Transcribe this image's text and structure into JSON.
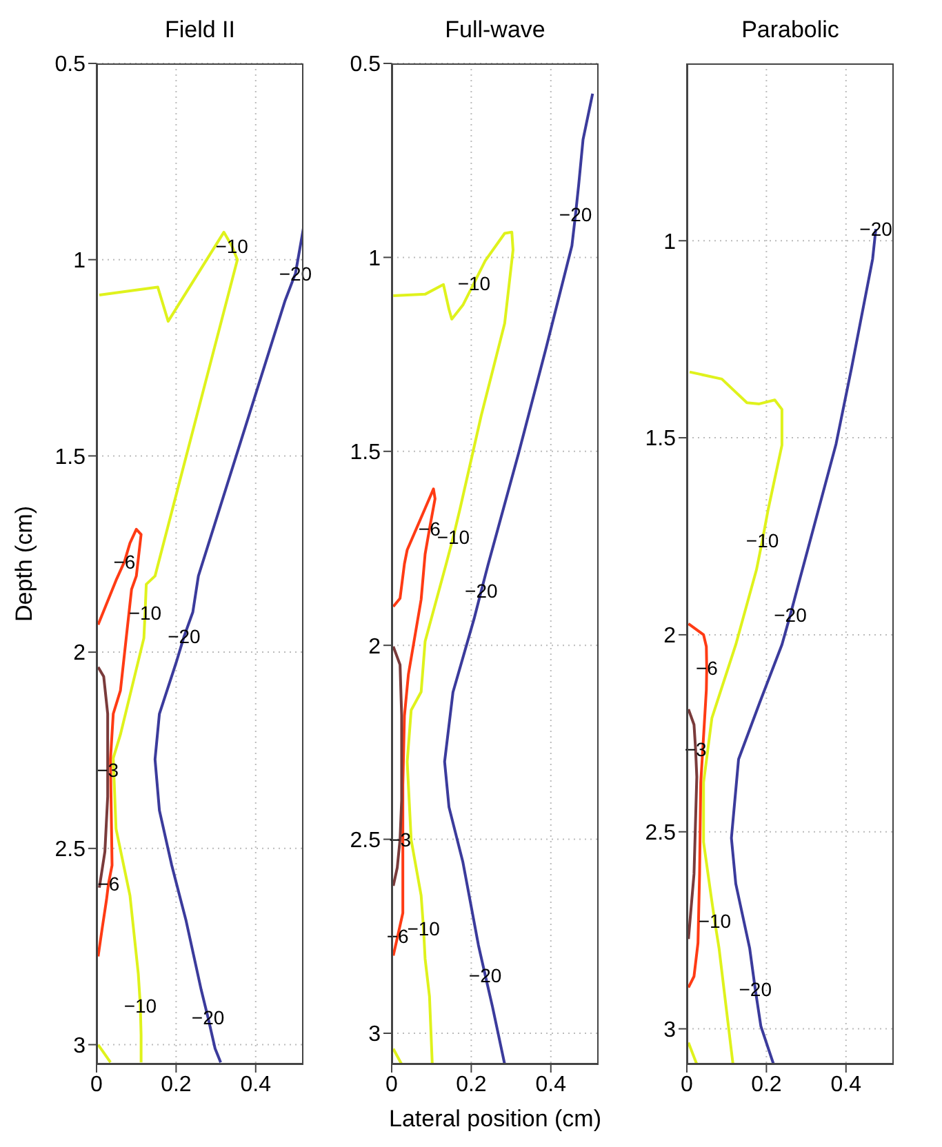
{
  "chart_data": [
    {
      "type": "line",
      "title": "Field II",
      "ylabel": "Depth (cm)",
      "xlim": [
        0,
        0.52
      ],
      "xticks": [
        0,
        0.2,
        0.4
      ],
      "ylim": [
        3.05,
        0.5
      ],
      "yticks": [
        0.5,
        1,
        1.5,
        2,
        2.5,
        3
      ],
      "grid": true,
      "marker": "none",
      "line_style": "solid",
      "series": [
        {
          "color": "#dff21c",
          "x": [
            0.007,
            0.154,
            0.18,
            0.32,
            0.34,
            0.354,
            0.147,
            0.125,
            0.122,
            0.119,
            0.06,
            0.042,
            0.049,
            0.084,
            0.105,
            0.11,
            0.112,
            0.112
          ],
          "values": [
            1.09,
            1.07,
            1.157,
            0.93,
            0.965,
            1.0,
            1.806,
            1.827,
            1.9,
            1.964,
            2.21,
            2.27,
            2.45,
            2.62,
            2.82,
            2.9,
            2.975,
            3.045
          ]
        },
        {
          "color": "#dff21c",
          "x": [
            0.004,
            0.035
          ],
          "values": [
            3.0,
            3.045
          ]
        },
        {
          "color": "#3b3b9c",
          "x": [
            0.52,
            0.5,
            0.474,
            0.256,
            0.242,
            0.22,
            0.2,
            0.158,
            0.147,
            0.158,
            0.189,
            0.225,
            0.263,
            0.28,
            0.298,
            0.312
          ],
          "values": [
            0.92,
            1.035,
            1.104,
            1.806,
            1.898,
            1.96,
            2.027,
            2.157,
            2.273,
            2.403,
            2.543,
            2.684,
            2.86,
            2.93,
            3.01,
            3.045
          ]
        },
        {
          "color": "#ff3b14",
          "x": [
            0.004,
            0.049,
            0.07,
            0.084,
            0.1,
            0.112,
            0.1,
            0.088,
            0.06,
            0.042,
            0.035,
            0.039,
            0.03,
            0.025,
            0.014,
            0.004
          ],
          "values": [
            1.93,
            1.817,
            1.77,
            1.722,
            1.687,
            1.7,
            1.806,
            1.84,
            2.098,
            2.157,
            2.273,
            2.543,
            2.59,
            2.631,
            2.705,
            2.775
          ]
        },
        {
          "color": "#7a3b3b",
          "x": [
            0.004,
            0.018,
            0.028,
            0.028,
            0.028,
            0.021,
            0.007
          ],
          "values": [
            2.038,
            2.062,
            2.157,
            2.3,
            2.368,
            2.508,
            2.6
          ]
        }
      ],
      "annotations": [
        {
          "text": "−10",
          "x": 0.34,
          "y": 0.965
        },
        {
          "text": "−10",
          "x": 0.122,
          "y": 1.9
        },
        {
          "text": "−10",
          "x": 0.11,
          "y": 2.9
        },
        {
          "text": "−20",
          "x": 0.5,
          "y": 1.035
        },
        {
          "text": "−20",
          "x": 0.22,
          "y": 1.96
        },
        {
          "text": "−20",
          "x": 0.28,
          "y": 2.93
        },
        {
          "text": "−6",
          "x": 0.07,
          "y": 1.77
        },
        {
          "text": "−6",
          "x": 0.03,
          "y": 2.59
        },
        {
          "text": "−3",
          "x": 0.028,
          "y": 2.3
        }
      ]
    },
    {
      "type": "line",
      "title": "Full-wave",
      "xlabel": "Lateral position (cm)",
      "xlim": [
        0,
        0.52
      ],
      "xticks": [
        0,
        0.2,
        0.4
      ],
      "ylim": [
        3.08,
        0.5
      ],
      "yticks": [
        0.5,
        1,
        1.5,
        2,
        2.5,
        3
      ],
      "grid": true,
      "marker": "none",
      "line_style": "solid",
      "series": [
        {
          "color": "#dff21c",
          "x": [
            0.004,
            0.084,
            0.13,
            0.144,
            0.151,
            0.179,
            0.207,
            0.235,
            0.284,
            0.302,
            0.305,
            0.284,
            0.225,
            0.172,
            0.155,
            0.137,
            0.084,
            0.074,
            0.049,
            0.039,
            0.049,
            0.074,
            0.08,
            0.084,
            0.095,
            0.102
          ],
          "values": [
            1.099,
            1.095,
            1.07,
            1.134,
            1.159,
            1.123,
            1.066,
            1.009,
            0.938,
            0.935,
            0.981,
            1.17,
            1.408,
            1.647,
            1.72,
            1.79,
            1.99,
            2.12,
            2.167,
            2.3,
            2.502,
            2.645,
            2.73,
            2.808,
            2.905,
            3.08
          ]
        },
        {
          "color": "#dff21c",
          "x": [
            0.004,
            0.025
          ],
          "values": [
            3.04,
            3.08
          ]
        },
        {
          "color": "#3b3b9c",
          "x": [
            0.505,
            0.481,
            0.47,
            0.462,
            0.453,
            0.389,
            0.319,
            0.242,
            0.225,
            0.207,
            0.154,
            0.133,
            0.144,
            0.179,
            0.218,
            0.235,
            0.253,
            0.284
          ],
          "values": [
            0.578,
            0.696,
            0.813,
            0.89,
            0.97,
            1.23,
            1.505,
            1.793,
            1.86,
            1.932,
            2.121,
            2.3,
            2.417,
            2.559,
            2.773,
            2.85,
            2.93,
            3.08
          ]
        },
        {
          "color": "#ff3b14",
          "x": [
            0.004,
            0.021,
            0.032,
            0.039,
            0.084,
            0.105,
            0.109,
            0.095,
            0.084,
            0.074,
            0.042,
            0.032,
            0.028,
            0.028,
            0.015,
            0.004
          ],
          "values": [
            1.9,
            1.879,
            1.79,
            1.754,
            1.647,
            1.597,
            1.622,
            1.7,
            1.765,
            1.882,
            2.075,
            2.182,
            2.36,
            2.69,
            2.75,
            2.8
          ]
        },
        {
          "color": "#7a3b3b",
          "x": [
            0.004,
            0.021,
            0.025,
            0.025,
            0.021,
            0.014,
            0.004
          ],
          "values": [
            2.003,
            2.05,
            2.18,
            2.4,
            2.5,
            2.573,
            2.62
          ]
        }
      ],
      "annotations": [
        {
          "text": "−10",
          "x": 0.207,
          "y": 1.066
        },
        {
          "text": "−10",
          "x": 0.155,
          "y": 1.72
        },
        {
          "text": "−10",
          "x": 0.08,
          "y": 2.73
        },
        {
          "text": "−20",
          "x": 0.462,
          "y": 0.89
        },
        {
          "text": "−20",
          "x": 0.225,
          "y": 1.86
        },
        {
          "text": "−20",
          "x": 0.235,
          "y": 2.85
        },
        {
          "text": "−6",
          "x": 0.095,
          "y": 1.7
        },
        {
          "text": "−6",
          "x": 0.015,
          "y": 2.75
        },
        {
          "text": "−3",
          "x": 0.021,
          "y": 2.5
        }
      ]
    },
    {
      "type": "line",
      "title": "Parabolic",
      "xlim": [
        0,
        0.52
      ],
      "xticks": [
        0,
        0.2,
        0.4
      ],
      "ylim": [
        3.09,
        0.55
      ],
      "yticks": [
        1,
        1.5,
        2,
        2.5,
        3
      ],
      "grid": true,
      "marker": "none",
      "line_style": "solid",
      "series": [
        {
          "color": "#dff21c",
          "x": [
            0.007,
            0.088,
            0.151,
            0.182,
            0.221,
            0.239,
            0.239,
            0.204,
            0.19,
            0.175,
            0.123,
            0.063,
            0.042,
            0.042,
            0.06,
            0.07,
            0.081,
            0.116
          ],
          "values": [
            1.333,
            1.351,
            1.411,
            1.414,
            1.404,
            1.428,
            1.519,
            1.684,
            1.76,
            1.835,
            2.025,
            2.211,
            2.375,
            2.526,
            2.656,
            2.726,
            2.796,
            3.09
          ]
        },
        {
          "color": "#dff21c",
          "x": [
            0.004,
            0.025
          ],
          "values": [
            3.035,
            3.09
          ]
        },
        {
          "color": "#3b3b9c",
          "x": [
            0.475,
            0.467,
            0.414,
            0.375,
            0.281,
            0.26,
            0.239,
            0.182,
            0.13,
            0.112,
            0.123,
            0.158,
            0.172,
            0.186,
            0.218
          ],
          "values": [
            0.97,
            1.046,
            1.323,
            1.516,
            1.87,
            1.95,
            2.025,
            2.175,
            2.316,
            2.516,
            2.632,
            2.796,
            2.9,
            2.993,
            3.09
          ]
        },
        {
          "color": "#ff3b14",
          "x": [
            0.004,
            0.042,
            0.049,
            0.05,
            0.049,
            0.035,
            0.032,
            0.028,
            0.018,
            0.004
          ],
          "values": [
            1.972,
            2.0,
            2.03,
            2.085,
            2.14,
            2.375,
            2.607,
            2.782,
            2.867,
            2.895
          ]
        },
        {
          "color": "#7a3b3b",
          "x": [
            0.004,
            0.018,
            0.022,
            0.025,
            0.018,
            0.004
          ],
          "values": [
            2.189,
            2.228,
            2.291,
            2.361,
            2.607,
            2.772
          ]
        }
      ],
      "annotations": [
        {
          "text": "−10",
          "x": 0.19,
          "y": 1.76
        },
        {
          "text": "−10",
          "x": 0.07,
          "y": 2.726
        },
        {
          "text": "−20",
          "x": 0.475,
          "y": 0.97
        },
        {
          "text": "−20",
          "x": 0.26,
          "y": 1.95
        },
        {
          "text": "−20",
          "x": 0.172,
          "y": 2.9
        },
        {
          "text": "−6",
          "x": 0.05,
          "y": 2.085
        },
        {
          "text": "−3",
          "x": 0.022,
          "y": 2.291
        }
      ]
    }
  ]
}
